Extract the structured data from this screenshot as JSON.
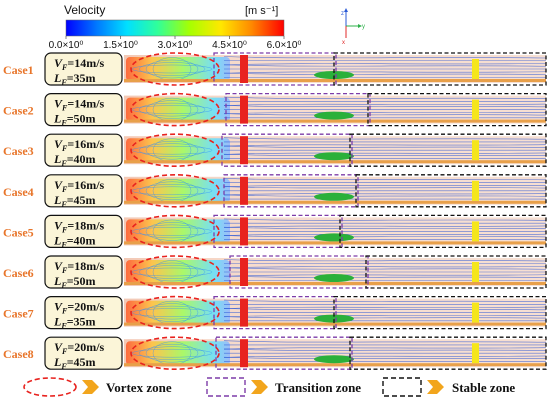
{
  "colorbar": {
    "title": "Velocity",
    "unit": "[m s⁻¹]",
    "ticks": [
      "0.0×10⁰",
      "1.5×10⁰",
      "3.0×10⁰",
      "4.5×10⁰",
      "6.0×10⁰"
    ],
    "colors": [
      "#0000ff",
      "#00a0ff",
      "#00ffff",
      "#3cff7a",
      "#c8ff00",
      "#ffe000",
      "#ff8000",
      "#ff0000"
    ]
  },
  "axes": {
    "z": "z",
    "y": "y",
    "x": "x"
  },
  "cases": [
    {
      "label": "Case1",
      "vf_sub": "F",
      "vf_value": "=14m/s",
      "lf_sub": "F",
      "lf_value": "=35m"
    },
    {
      "label": "Case2",
      "vf_sub": "F",
      "vf_value": "=14m/s",
      "lf_sub": "F",
      "lf_value": "=50m"
    },
    {
      "label": "Case3",
      "vf_sub": "F",
      "vf_value": "=16m/s",
      "lf_sub": "F",
      "lf_value": "=40m"
    },
    {
      "label": "Case4",
      "vf_sub": "F",
      "vf_value": "=16m/s",
      "lf_sub": "F",
      "lf_value": "=45m"
    },
    {
      "label": "Case5",
      "vf_sub": "F",
      "vf_value": "=18m/s",
      "lf_sub": "F",
      "lf_value": "=40m"
    },
    {
      "label": "Case6",
      "vf_sub": "F",
      "vf_value": "=18m/s",
      "lf_sub": "F",
      "lf_value": "=50m"
    },
    {
      "label": "Case7",
      "vf_sub": "F",
      "vf_value": "=20m/s",
      "lf_sub": "F",
      "lf_value": "=35m"
    },
    {
      "label": "Case8",
      "vf_sub": "F",
      "vf_value": "=20m/s",
      "lf_sub": "F",
      "lf_value": "=45m"
    }
  ],
  "legend": {
    "vortex": "Vortex zone",
    "transition": "Transition zone",
    "stable": "Stable zone"
  },
  "colors": {
    "case_label": "#e8752a",
    "vortex_border": "#e8231f",
    "transition_border": "#7d3ca8",
    "stable_border": "#111111",
    "arrow": "#f2a51c",
    "param_box_fill": "#fbf5d8",
    "duct_fill": "#f6d9c8",
    "red_band": "#e8231f",
    "yellow_band": "#f5e61b",
    "green_blob": "#2bb03a",
    "floor": "#e8a04a",
    "streamline": "#1f4fd6"
  }
}
